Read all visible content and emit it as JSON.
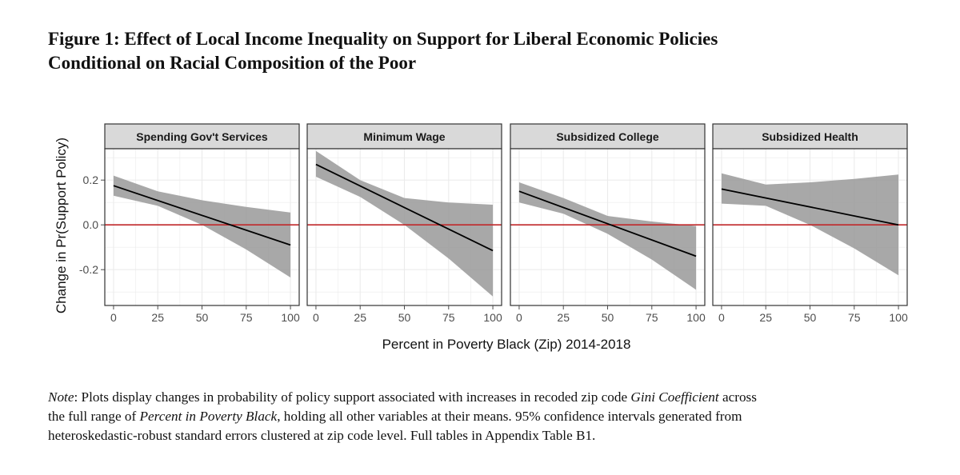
{
  "figure": {
    "title_line1": "Figure 1: Effect of Local Income Inequality on Support for Liberal Economic Policies",
    "title_line2": "Conditional on Racial Composition of the Poor"
  },
  "chart_data": {
    "type": "line",
    "title": "",
    "xlabel": "Percent in Poverty Black (Zip) 2014-2018",
    "ylabel": "Change in Pr(Support Policy)",
    "xlim": [
      0,
      100
    ],
    "ylim": [
      -0.36,
      0.34
    ],
    "x_ticks": [
      0,
      25,
      50,
      75,
      100
    ],
    "x_tick_labels": [
      "0",
      "25",
      "50",
      "75",
      "100"
    ],
    "y_ticks": [
      0.2,
      0.0,
      -0.2
    ],
    "y_tick_labels": [
      "0.2",
      "0.0",
      "-0.2"
    ],
    "reference_line": {
      "y": 0.0,
      "color": "#c0282a"
    },
    "grid": true,
    "band_label": "95% confidence interval",
    "panels": [
      {
        "name": "Spending Gov't Services",
        "x": [
          0,
          100
        ],
        "estimate": [
          0.175,
          -0.09
        ],
        "ci_x": [
          0,
          25,
          50,
          75,
          100
        ],
        "ci_lower": [
          0.13,
          0.085,
          0.0,
          -0.11,
          -0.235
        ],
        "ci_upper": [
          0.22,
          0.15,
          0.11,
          0.08,
          0.055
        ]
      },
      {
        "name": "Minimum Wage",
        "x": [
          0,
          100
        ],
        "estimate": [
          0.27,
          -0.115
        ],
        "ci_x": [
          0,
          25,
          50,
          75,
          100
        ],
        "ci_lower": [
          0.215,
          0.125,
          0.0,
          -0.15,
          -0.32
        ],
        "ci_upper": [
          0.33,
          0.2,
          0.12,
          0.1,
          0.09
        ]
      },
      {
        "name": "Subsidized College",
        "x": [
          0,
          100
        ],
        "estimate": [
          0.15,
          -0.14
        ],
        "ci_x": [
          0,
          25,
          50,
          75,
          100
        ],
        "ci_lower": [
          0.1,
          0.05,
          -0.04,
          -0.155,
          -0.29
        ],
        "ci_upper": [
          0.19,
          0.12,
          0.04,
          0.015,
          -0.005
        ]
      },
      {
        "name": "Subsidized Health",
        "x": [
          0,
          100
        ],
        "estimate": [
          0.16,
          0.0
        ],
        "ci_x": [
          0,
          25,
          50,
          75,
          100
        ],
        "ci_lower": [
          0.095,
          0.085,
          0.0,
          -0.105,
          -0.225
        ],
        "ci_upper": [
          0.23,
          0.18,
          0.19,
          0.205,
          0.225
        ]
      }
    ],
    "colors": {
      "band": "#999999",
      "estimate_line": "#000000",
      "strip_fill": "#d9d9d9",
      "panel_border": "#333333",
      "grid": "#ebebeb",
      "axis_text": "#4d4d4d"
    }
  },
  "note": {
    "label": "Note",
    "part1": ": Plots display changes in probability of policy support associated with increases in recoded zip code ",
    "gini": "Gini Coefficient",
    "part2": " across",
    "part3": "the full range of ",
    "pov": "Percent in Poverty Black",
    "part4": ", holding all other variables at their means. 95% confidence intervals generated from",
    "line3": "heteroskedastic-robust standard errors clustered at zip code level. Full tables in Appendix Table B1."
  }
}
